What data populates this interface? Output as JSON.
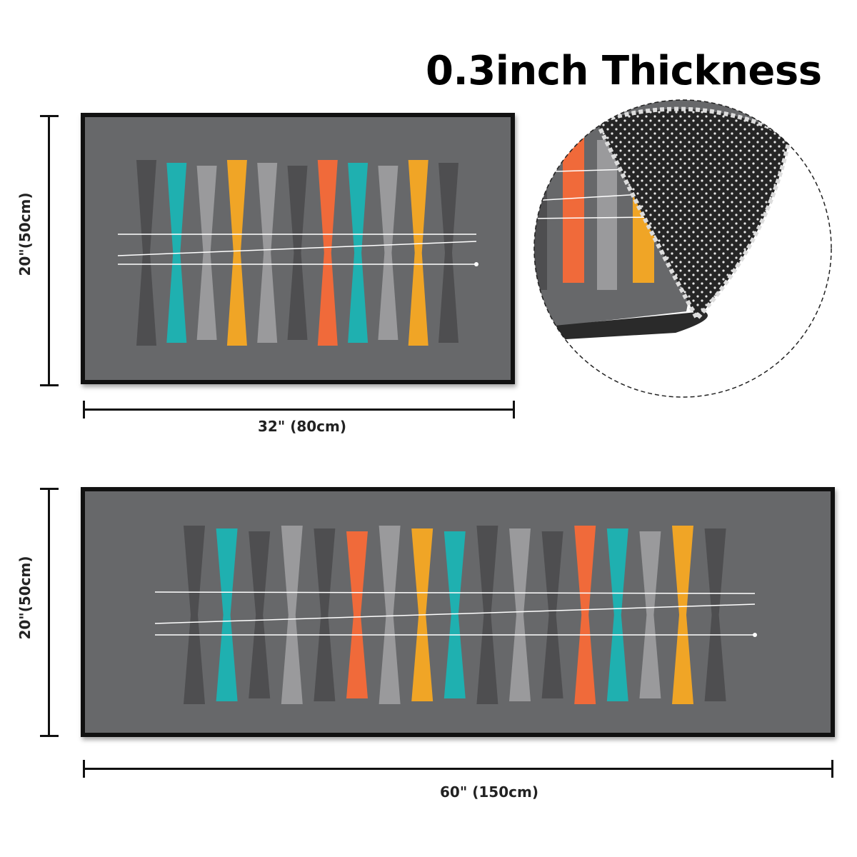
{
  "headline": "0.3inch Thickness",
  "small_rug": {
    "width_label": "32\" (80cm)",
    "height_label": "20\"(50cm)"
  },
  "large_rug": {
    "width_label": "60\" (150cm)",
    "height_label": "20\"(50cm)"
  },
  "colors": {
    "rug_background": "#67686a",
    "rug_border": "#111111",
    "teal": "#1fb0b0",
    "orange": "#f06a3a",
    "mustard": "#f0a526",
    "light_gray": "#9a9a9c",
    "dark_gray": "#4e4e50",
    "backing": "#2a2a2a"
  },
  "small_pattern": [
    "dark_gray",
    "teal",
    "light_gray",
    "mustard",
    "light_gray",
    "dark_gray",
    "orange",
    "teal",
    "light_gray",
    "mustard",
    "dark_gray"
  ],
  "large_pattern": [
    "dark_gray",
    "teal",
    "dark_gray",
    "light_gray",
    "dark_gray",
    "orange",
    "light_gray",
    "mustard",
    "teal",
    "dark_gray",
    "light_gray",
    "dark_gray",
    "orange",
    "teal",
    "light_gray",
    "mustard",
    "dark_gray"
  ]
}
